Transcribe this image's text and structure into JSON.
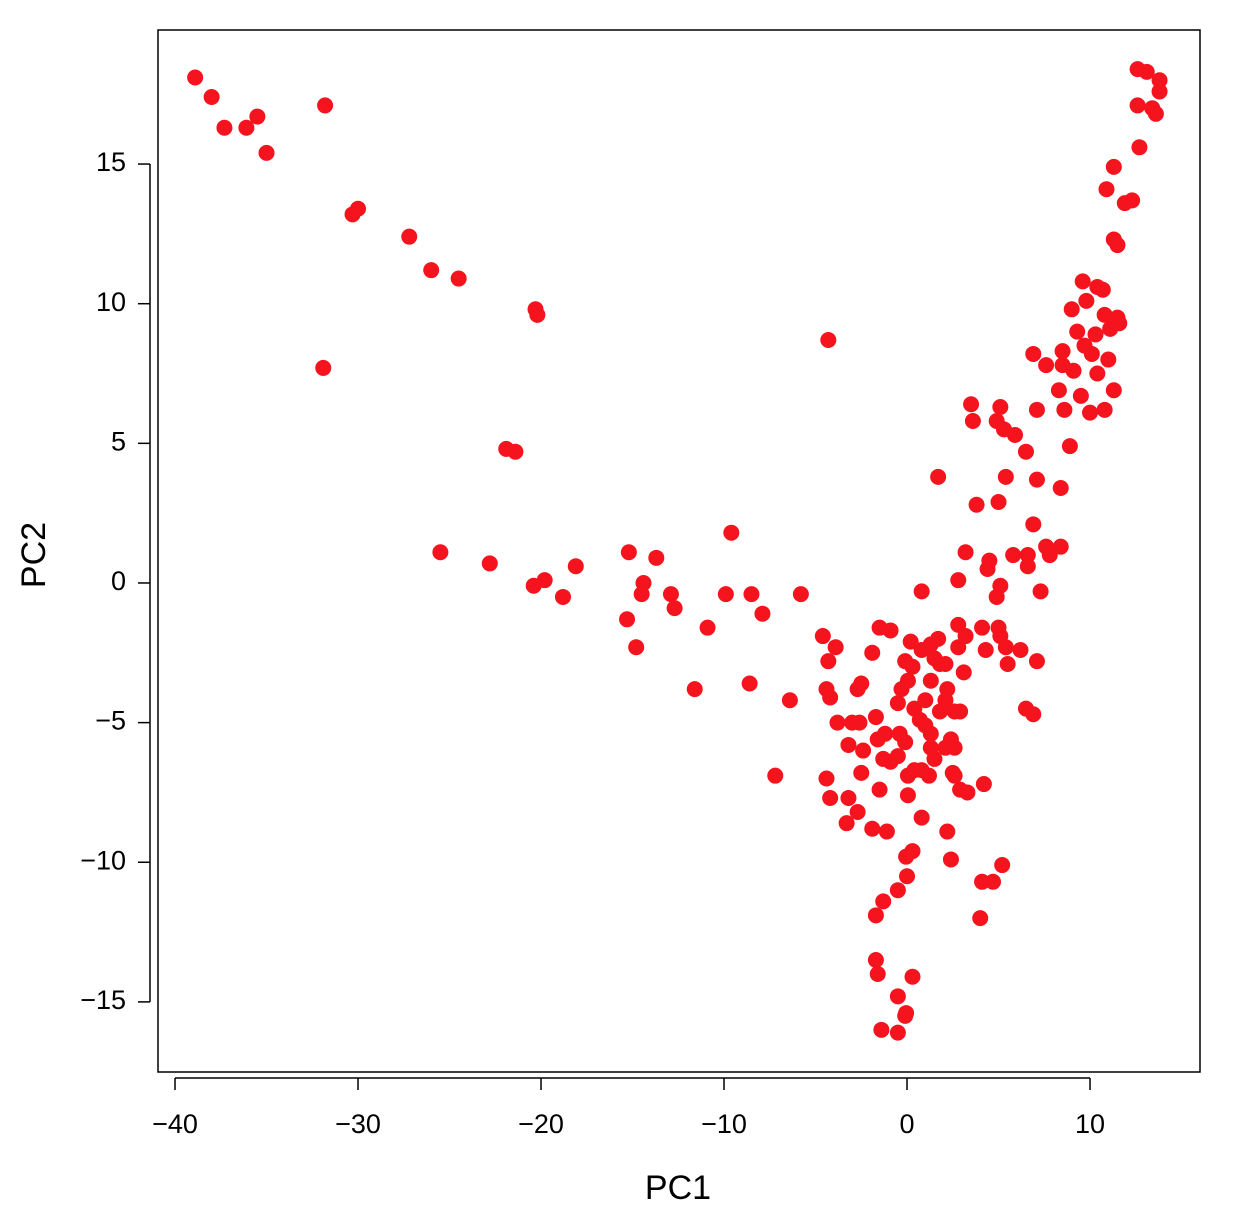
{
  "chart_data": {
    "type": "scatter",
    "xlabel": "PC1",
    "ylabel": "PC2",
    "color": "#f5141e",
    "x": [
      -38.9,
      -38.0,
      -37.3,
      -36.1,
      -35.5,
      -35.0,
      -31.8,
      -30.3,
      -30.0,
      -27.2,
      -26.0,
      -24.5,
      -20.3,
      -20.2,
      -31.9,
      -21.9,
      -21.4,
      -4.3,
      -25.5,
      -22.8,
      -20.4,
      -19.8,
      -18.8,
      -18.1,
      -15.2,
      -14.4,
      -14.5,
      -13.7,
      -12.9,
      -12.7,
      -15.3,
      -14.8,
      -10.9,
      -11.6,
      -9.9,
      -9.6,
      -8.5,
      -7.9,
      -5.8,
      -8.6,
      -6.4,
      -7.2,
      -4.6,
      -3.9,
      -4.3,
      -4.4,
      -4.2,
      -2.7,
      -2.5,
      -1.9,
      -1.5,
      -0.9,
      -3.8,
      -3.0,
      -2.6,
      -1.7,
      -3.2,
      -2.4,
      -1.6,
      -1.2,
      -4.4,
      -4.2,
      -3.2,
      -2.7,
      -3.3,
      -2.5,
      -1.5,
      -1.3,
      -1.9,
      -1.1,
      -0.9,
      -0.5,
      -0.4,
      -0.1,
      0.05,
      0.05,
      0.4,
      -0.5,
      -0.3,
      -0.1,
      0.2,
      0.3,
      0.05,
      0.4,
      0.7,
      1.0,
      1.3,
      0.8,
      1.3,
      1.5,
      1.8,
      2.1,
      1.7,
      1.0,
      1.3,
      1.8,
      2.1,
      2.2,
      2.6,
      2.9,
      2.4,
      2.1,
      2.6,
      1.3,
      1.5,
      1.2,
      0.8,
      2.5,
      2.6,
      3.3,
      2.9,
      4.2,
      0.8,
      2.2,
      2.4,
      0.3,
      -0.05,
      0.0,
      -0.5,
      -1.3,
      -1.7,
      -1.7,
      -1.6,
      0.3,
      -0.5,
      -0.05,
      -0.1,
      -1.4,
      -0.5,
      3.1,
      2.8,
      3.2,
      2.8,
      4.1,
      4.3,
      5.0,
      5.1,
      5.4,
      5.5,
      6.2,
      7.1,
      6.5,
      6.9,
      4.0,
      4.1,
      4.7,
      5.2,
      0.8,
      1.7,
      2.8,
      3.2,
      3.8,
      3.5,
      3.6,
      4.5,
      4.4,
      4.9,
      5.1,
      5.0,
      5.4,
      5.1,
      4.9,
      5.3,
      5.9,
      5.8,
      6.6,
      6.6,
      6.5,
      7.1,
      7.3,
      6.9,
      7.1,
      6.9,
      7.6,
      7.6,
      7.8,
      8.4,
      8.4,
      8.3,
      8.5,
      8.5,
      8.6,
      8.9,
      9.0,
      9.3,
      9.1,
      9.5,
      9.6,
      9.8,
      10.0,
      10.3,
      9.7,
      10.1,
      10.4,
      10.7,
      10.8,
      11.1,
      10.4,
      10.8,
      11.0,
      11.3,
      11.5,
      11.6,
      10.9,
      11.3,
      11.3,
      11.5,
      11.9,
      12.3,
      12.7,
      12.6,
      12.6,
      13.1,
      13.4,
      13.6,
      13.8,
      13.8
    ],
    "y": [
      18.1,
      17.4,
      16.3,
      16.3,
      16.7,
      15.4,
      17.1,
      13.2,
      13.4,
      12.4,
      11.2,
      10.9,
      9.8,
      9.6,
      7.7,
      4.8,
      4.7,
      8.7,
      1.1,
      0.7,
      -0.1,
      0.1,
      -0.5,
      0.6,
      1.1,
      0.0,
      -0.4,
      0.9,
      -0.4,
      -0.9,
      -1.3,
      -2.3,
      -1.6,
      -3.8,
      -0.4,
      1.8,
      -0.4,
      -1.1,
      -0.4,
      -3.6,
      -4.2,
      -6.9,
      -1.9,
      -2.3,
      -2.8,
      -3.8,
      -4.1,
      -3.8,
      -3.6,
      -2.5,
      -1.6,
      -1.7,
      -5.0,
      -5.0,
      -5.0,
      -4.8,
      -5.8,
      -6.0,
      -5.6,
      -5.4,
      -7.0,
      -7.7,
      -7.7,
      -8.2,
      -8.6,
      -6.8,
      -7.4,
      -6.3,
      -8.8,
      -8.9,
      -6.4,
      -6.2,
      -5.4,
      -5.7,
      -6.9,
      -7.6,
      -6.7,
      -4.3,
      -3.8,
      -2.8,
      -2.1,
      -3.0,
      -3.5,
      -4.5,
      -4.9,
      -4.2,
      -3.5,
      -2.4,
      -2.2,
      -2.7,
      -2.9,
      -2.9,
      -2.0,
      -5.1,
      -5.4,
      -4.6,
      -4.2,
      -3.8,
      -4.6,
      -4.6,
      -5.6,
      -5.9,
      -5.9,
      -5.9,
      -6.3,
      -6.9,
      -6.7,
      -6.8,
      -6.9,
      -7.5,
      -7.4,
      -7.2,
      -8.4,
      -8.9,
      -9.9,
      -9.6,
      -9.8,
      -10.5,
      -11.0,
      -11.4,
      -11.9,
      -13.5,
      -14.0,
      -14.1,
      -14.8,
      -15.4,
      -15.5,
      -16.0,
      -16.1,
      -3.2,
      -2.3,
      -1.9,
      -1.5,
      -1.6,
      -2.4,
      -1.6,
      -1.9,
      -2.3,
      -2.9,
      -2.4,
      -2.8,
      -4.5,
      -4.7,
      -12.0,
      -10.7,
      -10.7,
      -10.1,
      -0.3,
      3.8,
      0.1,
      1.1,
      2.8,
      6.4,
      5.8,
      0.8,
      0.5,
      -0.5,
      -0.1,
      2.9,
      3.8,
      6.3,
      5.8,
      5.5,
      5.3,
      1.0,
      1.0,
      0.6,
      4.7,
      3.7,
      -0.3,
      2.1,
      6.2,
      8.2,
      7.8,
      1.3,
      1.0,
      1.3,
      3.4,
      6.9,
      8.3,
      7.8,
      6.2,
      4.9,
      9.8,
      9.0,
      7.6,
      6.7,
      10.8,
      10.1,
      6.1,
      8.9,
      8.5,
      8.2,
      10.6,
      10.5,
      9.6,
      9.1,
      7.5,
      6.2,
      8.0,
      6.9,
      9.5,
      9.3,
      14.1,
      14.9,
      12.3,
      12.1,
      13.6,
      13.7,
      15.6,
      17.1,
      18.4,
      18.3,
      17.0,
      16.8,
      18.0,
      17.6
    ],
    "xlim": [
      -40.93,
      16.01
    ],
    "ylim": [
      -17.51,
      19.8
    ],
    "xticks": [
      {
        "value": -40,
        "label": "−40"
      },
      {
        "value": -30,
        "label": "−30"
      },
      {
        "value": -20,
        "label": "−20"
      },
      {
        "value": -10,
        "label": "−10"
      },
      0,
      10
    ],
    "yticks": [
      {
        "value": -15,
        "label": "−15"
      },
      {
        "value": -10,
        "label": "−10"
      },
      {
        "value": -5,
        "label": "−5"
      },
      0,
      5,
      10,
      15
    ]
  }
}
